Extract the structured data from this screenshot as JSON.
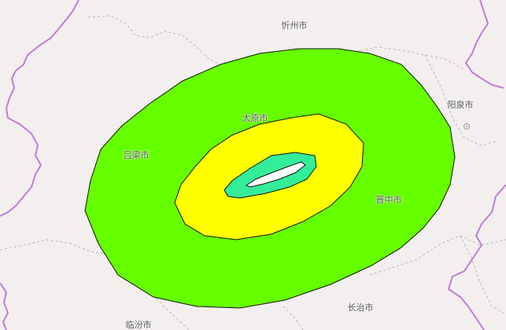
{
  "map": {
    "colors": {
      "background": "#f2efee",
      "province_border": "#c07ad8",
      "city_border": "#b8b4b4",
      "zone_outer": "#66ff00",
      "zone_middle": "#ffff00",
      "zone_inner": "#33ee99",
      "zone_core": "#ffffff",
      "zone_outline": "#111111"
    },
    "cities": [
      {
        "id": "xinzhou",
        "name": "忻州市"
      },
      {
        "id": "taiyuan",
        "name": "太原市"
      },
      {
        "id": "yangquan",
        "name": "阳泉市"
      },
      {
        "id": "lvliang",
        "name": "吕梁市"
      },
      {
        "id": "jinzhong",
        "name": "晋中市"
      },
      {
        "id": "changzhi",
        "name": "长治市"
      },
      {
        "id": "linfen",
        "name": "临汾市"
      }
    ]
  }
}
